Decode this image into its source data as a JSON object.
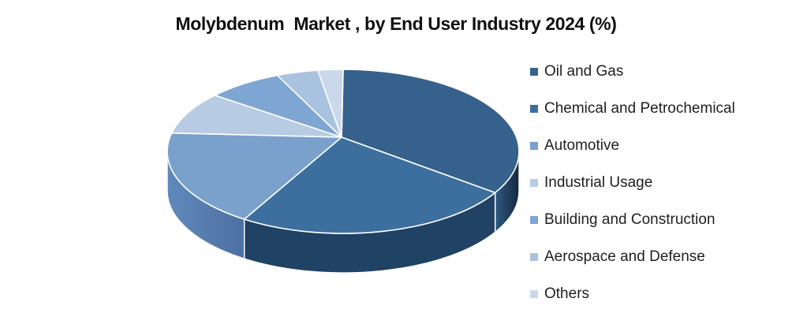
{
  "page": {
    "background": "#ffffff",
    "text_color": "#1f1f1f"
  },
  "chart_data": {
    "type": "pie",
    "style": "3d",
    "title": "Molybdenum  Market , by End User Industry 2024 (%)",
    "unit": "%",
    "legend_position": "right",
    "start_angle_deg": 0,
    "direction": "clockwise",
    "categories": [
      "Oil and Gas",
      "Chemical and Petrochemical",
      "Automotive",
      "Industrial Usage",
      "Building and Construction",
      "Aerospace and Defense",
      "Others"
    ],
    "values": [
      33.4,
      26.1,
      19.1,
      8.4,
      6.9,
      3.8,
      2.3
    ],
    "colors": [
      "#35618C",
      "#3D6F9E",
      "#7AA0CC",
      "#B7CBE3",
      "#7FA5D2",
      "#A9C2E0",
      "#C9D8EB"
    ],
    "side_colors": [
      [
        "#14283D",
        "#2E5A83"
      ],
      "#204264",
      [
        "#4E70A2",
        "#6089BB"
      ],
      null,
      null,
      null,
      null
    ],
    "slice_border_color": "#FFFFFF"
  }
}
